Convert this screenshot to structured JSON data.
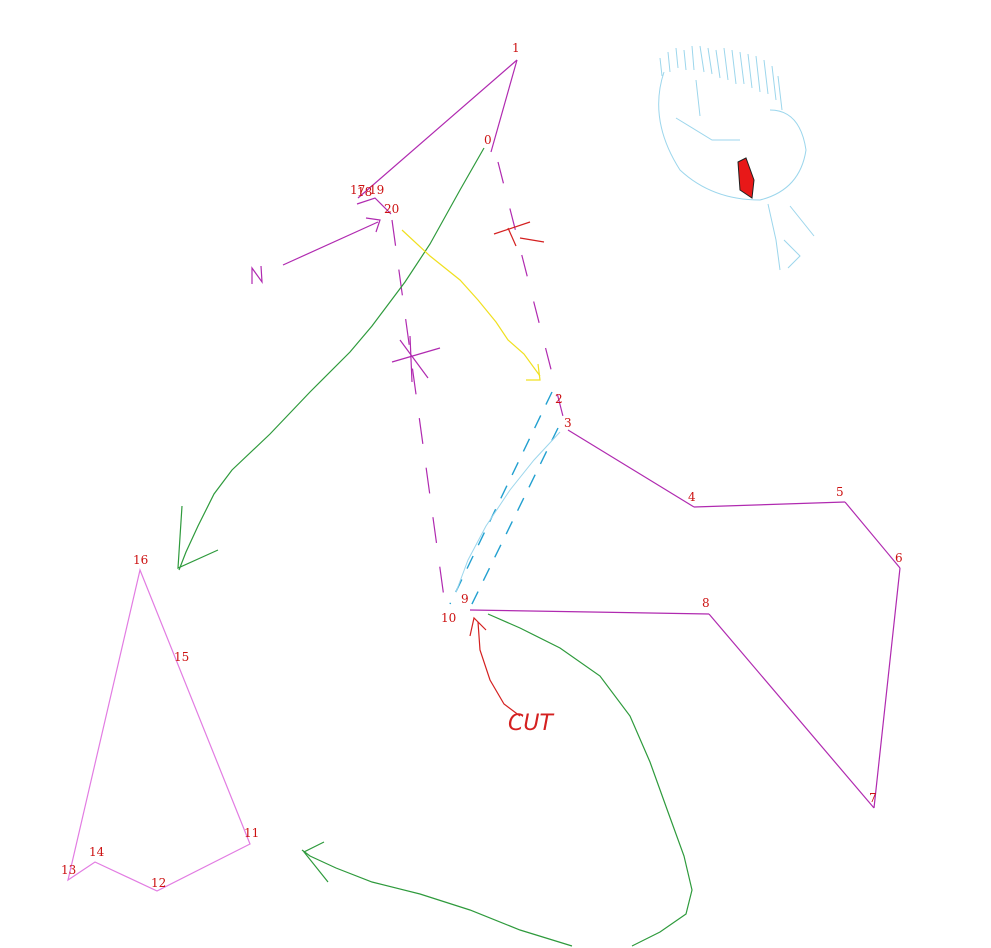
{
  "colors": {
    "background": "#ffffff",
    "label": "#cc1111",
    "main_outline": "#b02ab0",
    "pink_outline": "#e27ce2",
    "green_arrow": "#2e9a3c",
    "yellow_arrow": "#f0e020",
    "red_arrow": "#d42020",
    "cyan_dash": "#22a0d0",
    "light_blue": "#9cd6ec",
    "face_eye": "#e81818"
  },
  "vertex_labels": [
    "0",
    "1",
    "2",
    "3",
    "4",
    "5",
    "6",
    "7",
    "8",
    "9",
    "10",
    "11",
    "12",
    "13",
    "14",
    "15",
    "16",
    "17",
    "18",
    "19",
    "20"
  ],
  "annotations": {
    "cut_text": "CUT",
    "n_letter": "N"
  }
}
